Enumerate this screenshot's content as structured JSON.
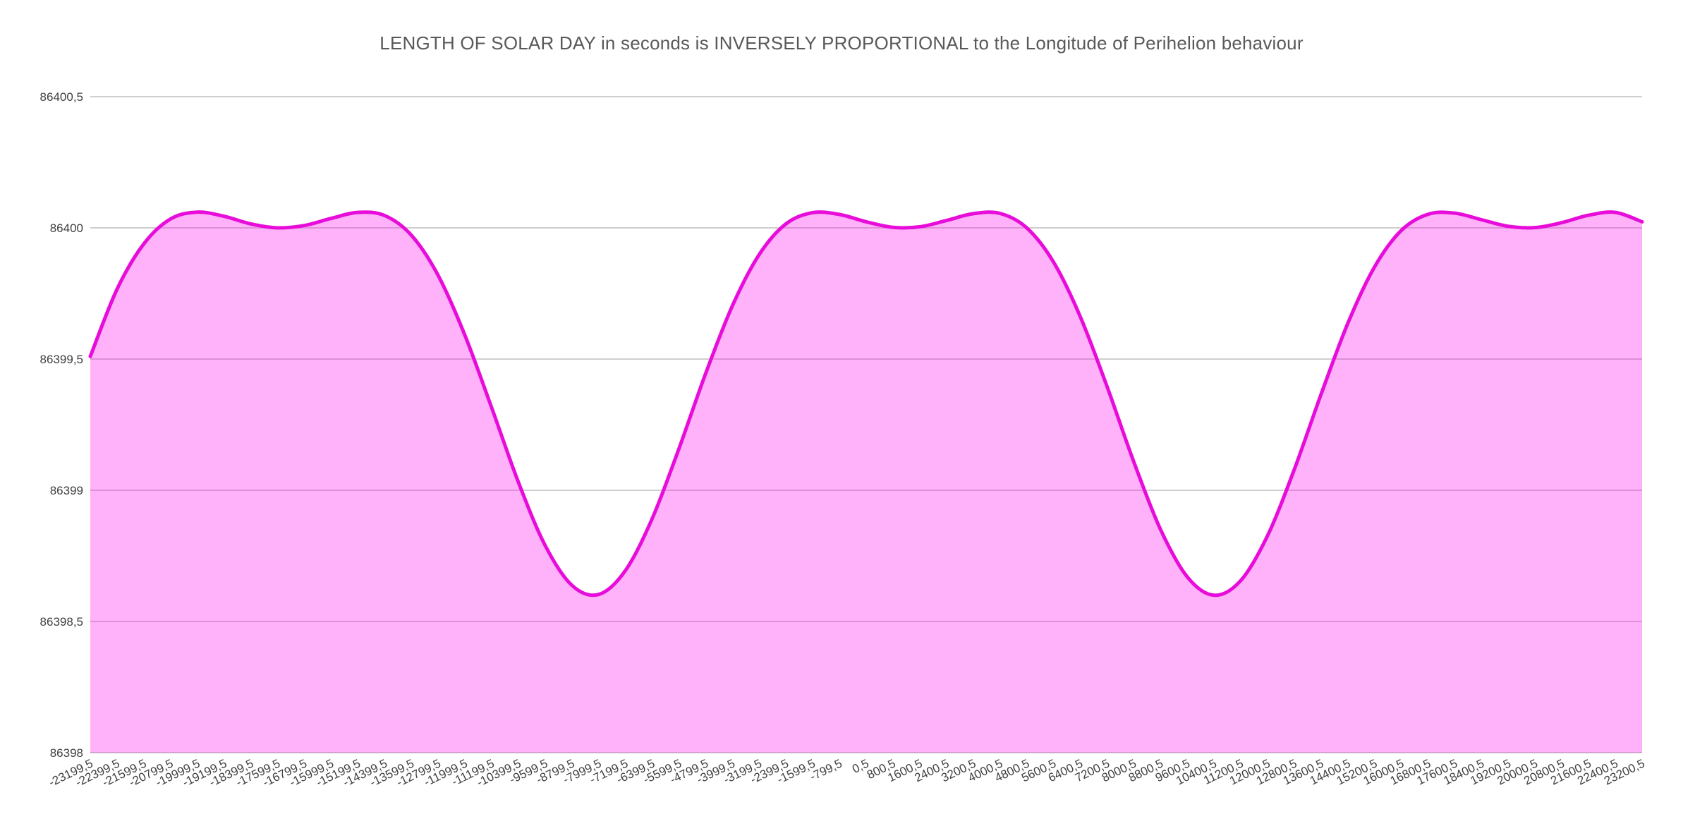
{
  "page": {
    "background": "#FFFFFF"
  },
  "chart_data": {
    "type": "area",
    "title": "LENGTH OF SOLAR DAY in seconds is INVERSELY PROPORTIONAL to the Longitude of Perihelion behaviour",
    "xlabel": "",
    "ylabel": "",
    "grid": true,
    "legend": false,
    "decimal_separator": ",",
    "ylim": [
      86398,
      86400.5
    ],
    "ytick_step": 0.5,
    "yticks": [
      {
        "value": 86400.5,
        "label": "86400,5"
      },
      {
        "value": 86400.0,
        "label": "86400"
      },
      {
        "value": 86399.5,
        "label": "86399,5"
      },
      {
        "value": 86399.0,
        "label": "86399"
      },
      {
        "value": 86398.5,
        "label": "86398,5"
      },
      {
        "value": 86398.0,
        "label": "86398"
      }
    ],
    "categories": [
      "-23199,5",
      "-22399,5",
      "-21599,5",
      "-20799,5",
      "-19999,5",
      "-19199,5",
      "-18399,5",
      "-17599,5",
      "-16799,5",
      "-15999,5",
      "-15199,5",
      "-14399,5",
      "-13599,5",
      "-12799,5",
      "-11999,5",
      "-11199,5",
      "-10399,5",
      "-9599,5",
      "-8799,5",
      "-7999,5",
      "-7199,5",
      "-6399,5",
      "-5599,5",
      "-4799,5",
      "-3999,5",
      "-3199,5",
      "-2399,5",
      "-1599,5",
      "-799,5",
      "0,5",
      "800,5",
      "1600,5",
      "2400,5",
      "3200,5",
      "4000,5",
      "4800,5",
      "5600,5",
      "6400,5",
      "7200,5",
      "8000,5",
      "8800,5",
      "9600,5",
      "10400,5",
      "11200,5",
      "12000,5",
      "12800,5",
      "13600,5",
      "14400,5",
      "15200,5",
      "16000,5",
      "16800,5",
      "17600,5",
      "18400,5",
      "19200,5",
      "20000,5",
      "20800,5",
      "21600,5",
      "22400,5",
      "23200,5"
    ],
    "values": [
      86399.51,
      86399.766,
      86399.939,
      86400.034,
      86400.06,
      86400.044,
      86400.015,
      86400.0,
      86400.009,
      86400.036,
      86400.059,
      86400.047,
      86399.972,
      86399.819,
      86399.591,
      86399.315,
      86399.031,
      86398.79,
      86398.638,
      86398.603,
      86398.694,
      86398.892,
      86399.158,
      86399.445,
      86399.703,
      86399.898,
      86400.015,
      86400.058,
      86400.051,
      86400.023,
      86400.002,
      86400.004,
      86400.028,
      86400.054,
      86400.055,
      86400.0,
      86399.87,
      86399.662,
      86399.396,
      86399.109,
      86398.851,
      86398.67,
      86398.6,
      86398.656,
      86398.827,
      86399.079,
      86399.365,
      86399.636,
      86399.851,
      86399.99,
      86400.052,
      86400.056,
      86400.031,
      86400.006,
      86400.001,
      86400.02,
      86400.048,
      86400.059,
      86400.023
    ],
    "colors": {
      "line": "#E80CDA",
      "fill_rgba": "rgba(255,0,240,0.30)",
      "gridline": "#CFCFCF",
      "title": "#595959",
      "tick": "#3F3F3F",
      "background": "#FFFFFF"
    }
  }
}
